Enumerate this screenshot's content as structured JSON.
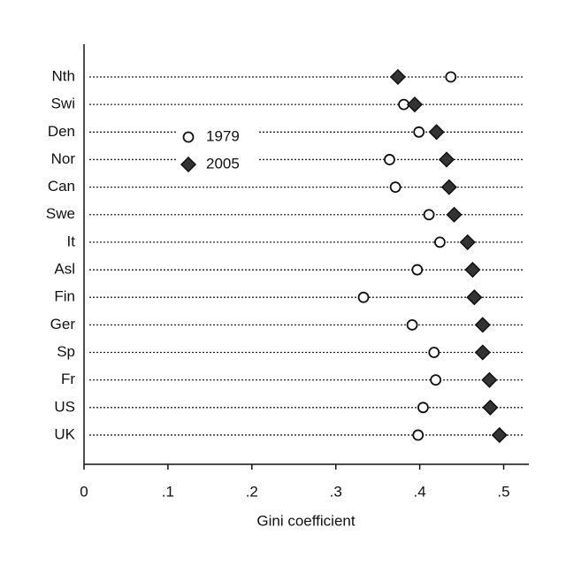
{
  "chart_data": {
    "type": "dot",
    "xlabel": "Gini coefficient",
    "categories": [
      "Nth",
      "Swi",
      "Den",
      "Nor",
      "Can",
      "Swe",
      "It",
      "Asl",
      "Fin",
      "Ger",
      "Sp",
      "Fr",
      "US",
      "UK"
    ],
    "series": [
      {
        "name": "1979",
        "color": "#ffffff",
        "marker": "circle",
        "values": [
          0.437,
          0.381,
          0.399,
          0.364,
          0.371,
          0.411,
          0.424,
          0.397,
          0.333,
          0.391,
          0.417,
          0.419,
          0.404,
          0.398
        ]
      },
      {
        "name": "2005",
        "color": "#333333",
        "marker": "diamond",
        "values": [
          0.374,
          0.394,
          0.42,
          0.432,
          0.435,
          0.441,
          0.457,
          0.463,
          0.465,
          0.475,
          0.475,
          0.483,
          0.484,
          0.495
        ]
      }
    ],
    "xlim": [
      0,
      0.53
    ],
    "xticks": [
      0,
      {
        "value": 0.1,
        "label": ".1"
      },
      {
        "value": 0.2,
        "label": ".2"
      },
      {
        "value": 0.3,
        "label": ".3"
      },
      {
        "value": 0.4,
        "label": ".4"
      },
      {
        "value": 0.5,
        "label": ".5"
      }
    ],
    "legend_position": "upper left"
  }
}
